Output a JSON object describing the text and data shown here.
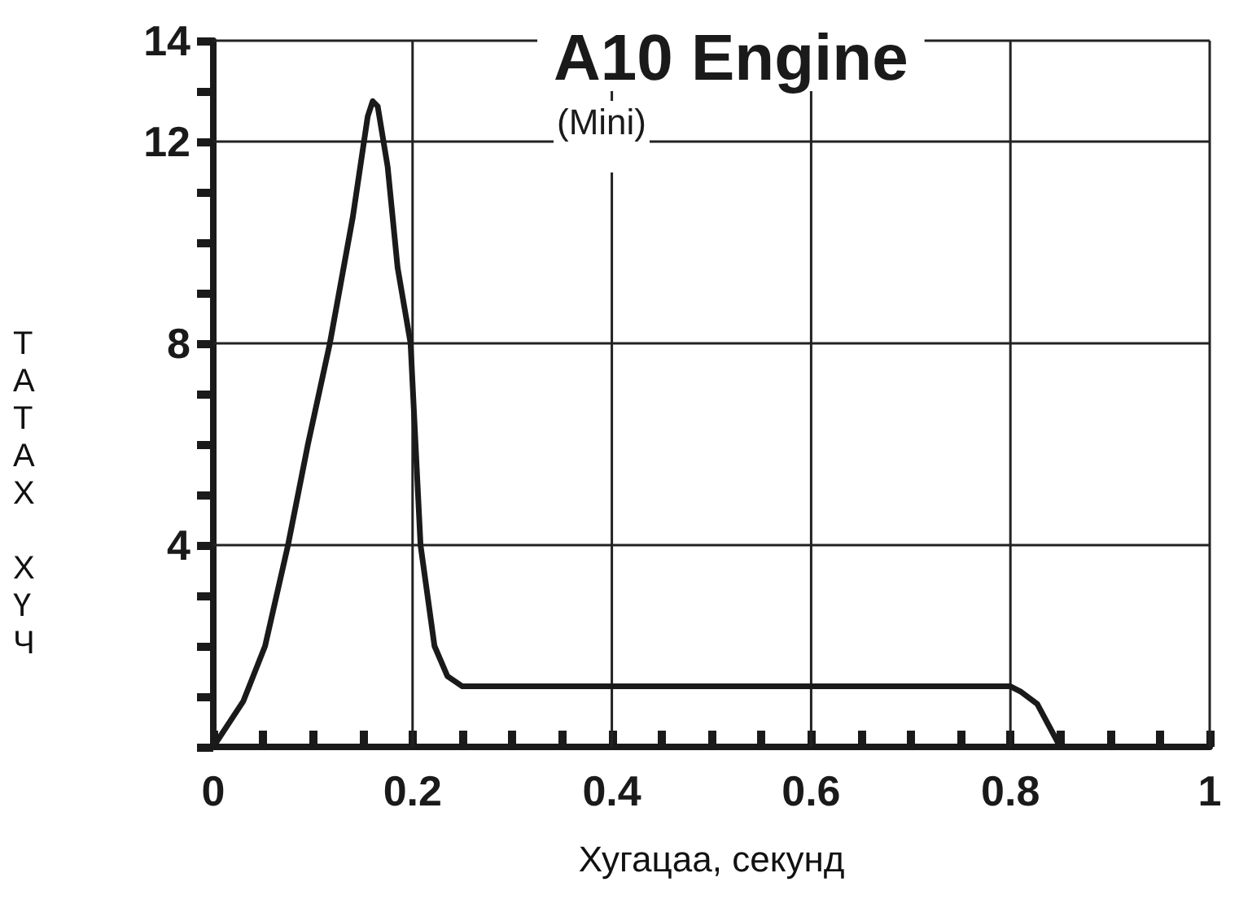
{
  "chart_data": {
    "type": "line",
    "title": "A10 Engine",
    "subtitle": "(Mini)",
    "xlabel": "Хугацаа, секунд",
    "ylabel": "ТАТАХ ХҮЧ",
    "x": [
      0,
      0.03,
      0.052,
      0.075,
      0.095,
      0.117,
      0.14,
      0.155,
      0.16,
      0.165,
      0.175,
      0.185,
      0.198,
      0.208,
      0.222,
      0.235,
      0.25,
      0.4,
      0.6,
      0.8,
      0.81,
      0.827,
      0.85
    ],
    "series": [
      {
        "color": "#1a1a1a",
        "values": [
          0,
          0.9,
          2,
          4,
          6,
          8,
          10.5,
          12.5,
          12.8,
          12.7,
          11.5,
          9.5,
          8,
          4,
          2,
          1.4,
          1.2,
          1.2,
          1.2,
          1.2,
          1.1,
          0.85,
          0
        ]
      }
    ],
    "xlim": [
      0,
      1
    ],
    "xticks": [
      "0",
      {
        "value": 0.05,
        "label": null
      },
      {
        "value": 0.1,
        "label": null
      },
      {
        "value": 0.15,
        "label": null
      },
      {
        "value": 0.2,
        "label": "0.2"
      },
      {
        "value": 0.25,
        "label": null
      },
      {
        "value": 0.3,
        "label": null
      },
      {
        "value": 0.35,
        "label": null
      },
      {
        "value": 0.4,
        "label": "0.4"
      },
      {
        "value": 0.45,
        "label": null
      },
      {
        "value": 0.5,
        "label": null
      },
      {
        "value": 0.55,
        "label": null
      },
      {
        "value": 0.6,
        "label": "0.6"
      },
      {
        "value": 0.65,
        "label": null
      },
      {
        "value": 0.7,
        "label": null
      },
      {
        "value": 0.75,
        "label": null
      },
      {
        "value": 0.8,
        "label": "0.8"
      },
      {
        "value": 0.85,
        "label": null
      },
      {
        "value": 0.9,
        "label": null
      },
      {
        "value": 0.95,
        "label": null
      },
      1
    ],
    "ylim": [
      0,
      14
    ],
    "yticks": [
      {
        "value": 0,
        "label": null
      },
      {
        "value": 1,
        "label": null
      },
      {
        "value": 2,
        "label": null
      },
      {
        "value": 3,
        "label": null
      },
      4,
      {
        "value": 5,
        "label": null
      },
      {
        "value": 6,
        "label": null
      },
      {
        "value": 7,
        "label": null
      },
      8,
      {
        "value": 9,
        "label": null
      },
      {
        "value": 10,
        "label": null
      },
      {
        "value": 11,
        "label": null
      },
      12,
      {
        "value": 13,
        "label": null
      },
      14
    ],
    "grid": true,
    "marker": "none",
    "line_style": "solid"
  }
}
